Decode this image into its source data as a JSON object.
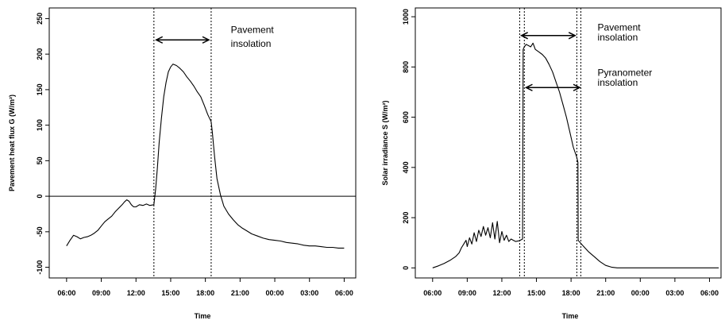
{
  "chart_data": [
    {
      "type": "line",
      "ylabel": "Pavement heat flux G (W/m²)",
      "xlabel": "Time",
      "xlim": [
        4.5,
        31.0
      ],
      "ylim": [
        -115,
        265
      ],
      "x_ticks": [
        {
          "value": 6,
          "label": "06:00"
        },
        {
          "value": 9,
          "label": "09:00"
        },
        {
          "value": 12,
          "label": "12:00"
        },
        {
          "value": 15,
          "label": "15:00"
        },
        {
          "value": 18,
          "label": "18:00"
        },
        {
          "value": 21,
          "label": "21:00"
        },
        {
          "value": 24,
          "label": "00:00"
        },
        {
          "value": 27,
          "label": "03:00"
        },
        {
          "value": 30,
          "label": "06:00"
        }
      ],
      "y_ticks": [
        {
          "value": -100,
          "label": "-100"
        },
        {
          "value": -50,
          "label": "-50"
        },
        {
          "value": 0,
          "label": "0"
        },
        {
          "value": 50,
          "label": "50"
        },
        {
          "value": 100,
          "label": "100"
        },
        {
          "value": 150,
          "label": "150"
        },
        {
          "value": 200,
          "label": "200"
        },
        {
          "value": 250,
          "label": "250"
        }
      ],
      "hline": 0,
      "vlines": [
        13.55,
        18.5
      ],
      "arrows": [
        {
          "x0": 13.75,
          "x1": 18.3,
          "y": 220
        }
      ],
      "annotations": [
        {
          "text": "Pavement",
          "x": 20.2,
          "y": 230
        },
        {
          "text": "insolation",
          "x": 20.2,
          "y": 210
        }
      ],
      "series": [
        {
          "x": [
            6.0,
            6.3,
            6.6,
            6.9,
            7.2,
            7.5,
            7.8,
            8.1,
            8.4,
            8.7,
            9.0,
            9.3,
            9.6,
            9.9,
            10.2,
            10.5,
            10.8,
            11.0,
            11.2,
            11.4,
            11.6,
            11.8,
            12.0,
            12.3,
            12.6,
            12.9,
            13.2,
            13.55,
            13.7,
            13.85,
            14.0,
            14.2,
            14.4,
            14.6,
            14.8,
            15.0,
            15.2,
            15.5,
            15.8,
            16.1,
            16.4,
            16.7,
            17.0,
            17.3,
            17.6,
            17.9,
            18.2,
            18.5,
            18.6,
            18.8,
            19.0,
            19.3,
            19.6,
            20.0,
            20.4,
            20.8,
            21.2,
            21.6,
            22.0,
            22.5,
            23.0,
            23.5,
            24.0,
            24.5,
            25.0,
            25.5,
            26.0,
            26.5,
            27.0,
            27.5,
            28.0,
            28.5,
            29.0,
            29.5,
            30.0
          ],
          "y": [
            -70,
            -62,
            -55,
            -57,
            -60,
            -58,
            -57,
            -55,
            -52,
            -48,
            -42,
            -36,
            -32,
            -28,
            -22,
            -17,
            -12,
            -8,
            -5,
            -7,
            -12,
            -15,
            -15,
            -12,
            -13,
            -11,
            -13,
            -12,
            10,
            40,
            75,
            110,
            140,
            160,
            175,
            182,
            186,
            184,
            180,
            175,
            168,
            162,
            155,
            147,
            140,
            128,
            115,
            105,
            90,
            55,
            25,
            2,
            -14,
            -25,
            -33,
            -40,
            -45,
            -49,
            -53,
            -56,
            -59,
            -61,
            -62,
            -63,
            -65,
            -66,
            -67,
            -69,
            -70,
            -70,
            -71,
            -72,
            -72,
            -73,
            -73
          ]
        }
      ]
    },
    {
      "type": "line",
      "ylabel": "Solar irradiance S (W/m²)",
      "xlabel": "Time",
      "xlim": [
        4.5,
        31.0
      ],
      "ylim": [
        -40,
        1035
      ],
      "x_ticks": [
        {
          "value": 6,
          "label": "06:00"
        },
        {
          "value": 9,
          "label": "09:00"
        },
        {
          "value": 12,
          "label": "12:00"
        },
        {
          "value": 15,
          "label": "15:00"
        },
        {
          "value": 18,
          "label": "18:00"
        },
        {
          "value": 21,
          "label": "21:00"
        },
        {
          "value": 24,
          "label": "00:00"
        },
        {
          "value": 27,
          "label": "03:00"
        },
        {
          "value": 30,
          "label": "06:00"
        }
      ],
      "y_ticks": [
        {
          "value": 0,
          "label": "0"
        },
        {
          "value": 200,
          "label": "200"
        },
        {
          "value": 400,
          "label": "400"
        },
        {
          "value": 600,
          "label": "600"
        },
        {
          "value": 800,
          "label": "800"
        },
        {
          "value": 1000,
          "label": "1000"
        }
      ],
      "vlines": [
        13.55,
        13.95,
        18.5,
        18.85
      ],
      "arrows": [
        {
          "x0": 13.7,
          "x1": 18.35,
          "y": 925
        },
        {
          "x0": 14.1,
          "x1": 18.75,
          "y": 718
        }
      ],
      "annotations": [
        {
          "text": "Pavement",
          "x": 20.3,
          "y": 945
        },
        {
          "text": "insolation",
          "x": 20.3,
          "y": 905
        },
        {
          "text": "Pyranometer",
          "x": 20.3,
          "y": 765
        },
        {
          "text": "insolation",
          "x": 20.3,
          "y": 725
        }
      ],
      "series": [
        {
          "x": [
            6.0,
            6.5,
            7.0,
            7.5,
            8.0,
            8.3,
            8.5,
            8.7,
            8.9,
            9.0,
            9.2,
            9.4,
            9.6,
            9.8,
            10.0,
            10.2,
            10.4,
            10.6,
            10.8,
            11.0,
            11.2,
            11.4,
            11.6,
            11.8,
            12.0,
            12.2,
            12.4,
            12.6,
            12.8,
            13.0,
            13.2,
            13.5,
            13.8,
            13.85,
            13.95,
            14.1,
            14.3,
            14.5,
            14.7,
            14.9,
            15.2,
            15.5,
            15.8,
            16.1,
            16.4,
            16.7,
            17.0,
            17.3,
            17.6,
            17.9,
            18.2,
            18.5,
            18.6,
            18.62,
            18.8,
            19.1,
            19.5,
            20.0,
            20.5,
            21.0,
            21.5,
            22.0,
            23.0,
            24.0,
            25.0,
            26.0,
            27.0,
            28.0,
            29.0,
            30.0,
            30.8
          ],
          "y": [
            0,
            8,
            18,
            30,
            45,
            60,
            80,
            95,
            110,
            85,
            120,
            95,
            140,
            105,
            150,
            125,
            165,
            130,
            160,
            120,
            180,
            115,
            185,
            100,
            145,
            110,
            130,
            105,
            115,
            110,
            105,
            108,
            115,
            870,
            880,
            890,
            885,
            880,
            895,
            870,
            860,
            850,
            835,
            810,
            780,
            740,
            700,
            650,
            600,
            540,
            480,
            440,
            420,
            110,
            100,
            85,
            65,
            45,
            25,
            10,
            3,
            0,
            0,
            0,
            0,
            0,
            0,
            0,
            0,
            0,
            0
          ]
        }
      ]
    }
  ]
}
